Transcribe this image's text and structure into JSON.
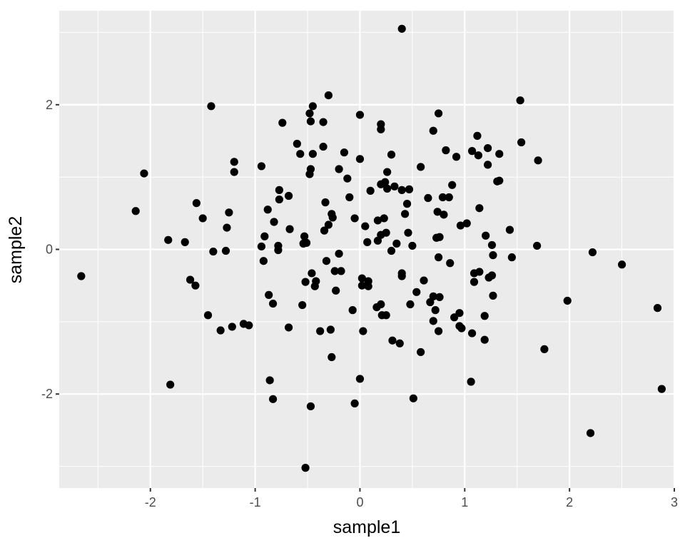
{
  "chart_data": {
    "type": "scatter",
    "title": "",
    "xlabel": "sample1",
    "ylabel": "sample2",
    "xlim": [
      -2.87,
      3.0
    ],
    "ylim": [
      -3.3,
      3.3
    ],
    "x_ticks": [
      -2,
      -1,
      0,
      1,
      2,
      3
    ],
    "x_tick_labels": [
      "-2",
      "-1",
      "0",
      "1",
      "2",
      "3"
    ],
    "y_ticks": [
      -2,
      0,
      2
    ],
    "y_tick_labels": [
      "-2",
      "0",
      "2"
    ],
    "grid": true,
    "legend": "none",
    "point_color": "#000000",
    "panel_color": "#ebebeb",
    "grid_color": "#ffffff",
    "points": [
      [
        0.4,
        3.05
      ],
      [
        -0.3,
        2.13
      ],
      [
        -0.45,
        1.98
      ],
      [
        -0.48,
        1.88
      ],
      [
        -0.47,
        1.77
      ],
      [
        -0.35,
        1.76
      ],
      [
        0,
        1.86
      ],
      [
        -1.42,
        1.98
      ],
      [
        0.75,
        1.88
      ],
      [
        1.53,
        2.06
      ],
      [
        0.2,
        1.73
      ],
      [
        0.2,
        1.66
      ],
      [
        0.7,
        1.64
      ],
      [
        1.12,
        1.57
      ],
      [
        -0.74,
        1.75
      ],
      [
        -0.6,
        1.46
      ],
      [
        -0.57,
        1.32
      ],
      [
        -0.45,
        1.32
      ],
      [
        -0.35,
        1.42
      ],
      [
        -0.15,
        1.34
      ],
      [
        0,
        1.25
      ],
      [
        0.3,
        1.31
      ],
      [
        0.82,
        1.37
      ],
      [
        0.92,
        1.28
      ],
      [
        1.07,
        1.36
      ],
      [
        1.13,
        1.3
      ],
      [
        1.22,
        1.4
      ],
      [
        1.33,
        1.32
      ],
      [
        1.54,
        1.48
      ],
      [
        1.7,
        1.23
      ],
      [
        1.22,
        1.17
      ],
      [
        -2.06,
        1.05
      ],
      [
        -1.2,
        1.21
      ],
      [
        -0.94,
        1.15
      ],
      [
        -1.2,
        1.07
      ],
      [
        -0.47,
        1.11
      ],
      [
        -0.48,
        1.04
      ],
      [
        -0.2,
        1.11
      ],
      [
        -0.12,
        0.98
      ],
      [
        0.26,
        1.07
      ],
      [
        0.58,
        1.14
      ],
      [
        0.24,
        0.93
      ],
      [
        0.2,
        0.9
      ],
      [
        0.26,
        0.84
      ],
      [
        0.33,
        0.87
      ],
      [
        0.4,
        0.82
      ],
      [
        0.47,
        0.83
      ],
      [
        0.1,
        0.81
      ],
      [
        -0.77,
        0.82
      ],
      [
        -0.68,
        0.74
      ],
      [
        -0.77,
        0.69
      ],
      [
        -0.1,
        0.72
      ],
      [
        0.65,
        0.71
      ],
      [
        0.79,
        0.72
      ],
      [
        0.85,
        0.72
      ],
      [
        0.88,
        0.89
      ],
      [
        1.31,
        0.94
      ],
      [
        1.33,
        0.95
      ],
      [
        -2.14,
        0.53
      ],
      [
        -1.56,
        0.64
      ],
      [
        -1.5,
        0.43
      ],
      [
        -1.25,
        0.51
      ],
      [
        -1.27,
        0.3
      ],
      [
        -0.88,
        0.55
      ],
      [
        -0.82,
        0.38
      ],
      [
        -0.67,
        0.28
      ],
      [
        -0.33,
        0.65
      ],
      [
        -0.27,
        0.49
      ],
      [
        -0.26,
        0.44
      ],
      [
        -0.3,
        0.34
      ],
      [
        -0.34,
        0.26
      ],
      [
        -0.05,
        0.43
      ],
      [
        0.05,
        0.32
      ],
      [
        0.17,
        0.4
      ],
      [
        0.23,
        0.43
      ],
      [
        0.43,
        0.49
      ],
      [
        0.45,
        0.63
      ],
      [
        0.74,
        0.52
      ],
      [
        0.8,
        0.48
      ],
      [
        0.96,
        0.33
      ],
      [
        1.02,
        0.36
      ],
      [
        1.14,
        0.57
      ],
      [
        1.43,
        0.27
      ],
      [
        -1.83,
        0.13
      ],
      [
        -1.67,
        0.1
      ],
      [
        -0.91,
        0.18
      ],
      [
        -0.94,
        0.04
      ],
      [
        -0.78,
        0.05
      ],
      [
        -0.78,
        -0.01
      ],
      [
        -0.53,
        0.18
      ],
      [
        -0.54,
        0.08
      ],
      [
        -0.51,
        0.09
      ],
      [
        -1.4,
        -0.03
      ],
      [
        -1.28,
        -0.02
      ],
      [
        -0.2,
        -0.06
      ],
      [
        0.07,
        0.1
      ],
      [
        0.17,
        0.12
      ],
      [
        0.2,
        0.2
      ],
      [
        0.25,
        0.23
      ],
      [
        0.35,
        0.08
      ],
      [
        0.46,
        0.23
      ],
      [
        0.5,
        0.05
      ],
      [
        0.73,
        0.16
      ],
      [
        0.76,
        0.17
      ],
      [
        1.2,
        0.19
      ],
      [
        1.26,
        0.06
      ],
      [
        1.69,
        0.05
      ],
      [
        -0.92,
        -0.16
      ],
      [
        0.3,
        -0.02
      ],
      [
        0.75,
        -0.11
      ],
      [
        0.86,
        -0.19
      ],
      [
        1.27,
        -0.08
      ],
      [
        1.45,
        -0.11
      ],
      [
        -2.66,
        -0.37
      ],
      [
        -1.62,
        -0.42
      ],
      [
        -1.57,
        -0.5
      ],
      [
        -0.52,
        -0.45
      ],
      [
        -0.46,
        -0.33
      ],
      [
        -0.42,
        -0.44
      ],
      [
        -0.43,
        -0.51
      ],
      [
        -0.32,
        -0.16
      ],
      [
        -0.24,
        -0.3
      ],
      [
        -0.18,
        -0.3
      ],
      [
        0.02,
        -0.4
      ],
      [
        0.02,
        -0.5
      ],
      [
        0.08,
        -0.44
      ],
      [
        0.08,
        -0.51
      ],
      [
        0.4,
        -0.33
      ],
      [
        0.4,
        -0.37
      ],
      [
        0.61,
        -0.43
      ],
      [
        1.09,
        -0.33
      ],
      [
        1.14,
        -0.31
      ],
      [
        1.09,
        -0.45
      ],
      [
        1.26,
        -0.36
      ],
      [
        1.23,
        -0.39
      ],
      [
        2.22,
        -0.04
      ],
      [
        2.5,
        -0.21
      ],
      [
        -0.87,
        -0.63
      ],
      [
        -0.83,
        -0.75
      ],
      [
        -0.55,
        -0.77
      ],
      [
        -0.23,
        -0.57
      ],
      [
        -0.07,
        -0.84
      ],
      [
        0.16,
        -0.8
      ],
      [
        0.2,
        -0.76
      ],
      [
        0.21,
        -0.91
      ],
      [
        0.25,
        -0.91
      ],
      [
        0.48,
        -0.76
      ],
      [
        0.54,
        -0.59
      ],
      [
        0.67,
        -0.73
      ],
      [
        0.7,
        -0.65
      ],
      [
        0.76,
        -0.66
      ],
      [
        0.72,
        -0.84
      ],
      [
        0.7,
        -0.99
      ],
      [
        0.9,
        -0.94
      ],
      [
        0.95,
        -0.88
      ],
      [
        1.27,
        -0.64
      ],
      [
        1.19,
        -0.92
      ],
      [
        1.98,
        -0.71
      ],
      [
        2.84,
        -0.81
      ],
      [
        -1.45,
        -0.91
      ],
      [
        -1.33,
        -1.12
      ],
      [
        -1.22,
        -1.07
      ],
      [
        -1.11,
        -1.03
      ],
      [
        -1.06,
        -1.05
      ],
      [
        -0.68,
        -1.08
      ],
      [
        -0.38,
        -1.13
      ],
      [
        -0.28,
        -1.11
      ],
      [
        0.03,
        -1.13
      ],
      [
        0.75,
        -1.13
      ],
      [
        0.95,
        -1.06
      ],
      [
        0.97,
        -1.09
      ],
      [
        1.07,
        -1.16
      ],
      [
        1.19,
        -1.25
      ],
      [
        0.31,
        -1.26
      ],
      [
        0.38,
        -1.3
      ],
      [
        0.58,
        -1.42
      ],
      [
        1.76,
        -1.38
      ],
      [
        -0.27,
        -1.49
      ],
      [
        -1.81,
        -1.87
      ],
      [
        -0.86,
        -1.81
      ],
      [
        -0.83,
        -2.07
      ],
      [
        -0.47,
        -2.17
      ],
      [
        0,
        -1.79
      ],
      [
        -0.05,
        -2.13
      ],
      [
        0.51,
        -2.06
      ],
      [
        1.06,
        -1.83
      ],
      [
        2.88,
        -1.93
      ],
      [
        2.2,
        -2.54
      ],
      [
        -0.52,
        -3.02
      ]
    ]
  }
}
